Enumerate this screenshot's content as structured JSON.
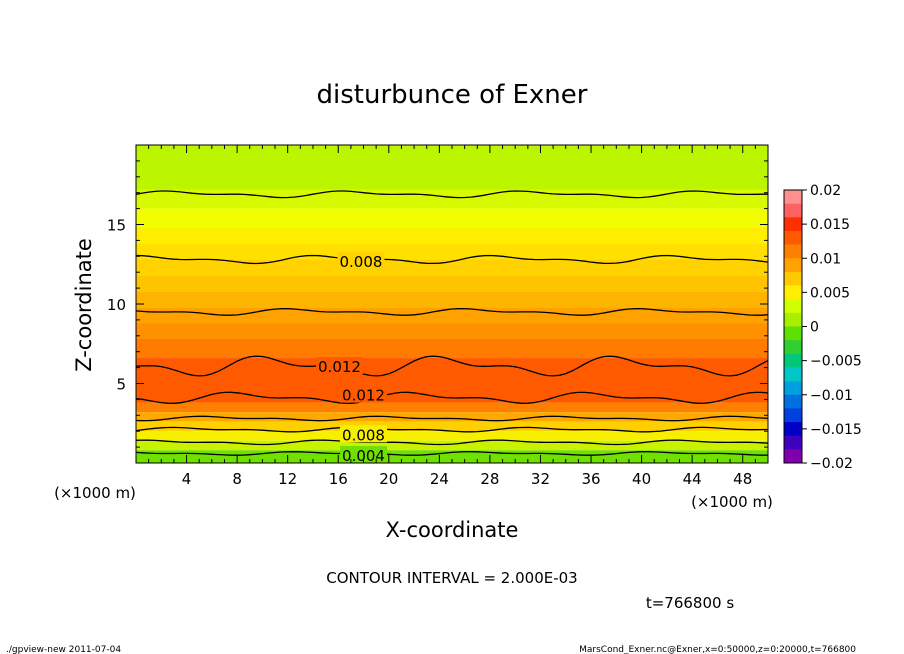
{
  "chart_data": {
    "type": "contour",
    "title": "disturbunce of Exner",
    "xlabel": "X-coordinate",
    "ylabel": "Z-coordinate",
    "x_unit": "(×1000 m)",
    "y_unit": "(×1000 m)",
    "xlim": [
      0,
      50
    ],
    "ylim": [
      0,
      20
    ],
    "x_ticks": [
      4,
      8,
      12,
      16,
      20,
      24,
      28,
      32,
      36,
      40,
      44,
      48
    ],
    "y_ticks": [
      5,
      10,
      15
    ],
    "colorbar": {
      "range": [
        -0.02,
        0.02
      ],
      "tick_labels": [
        "0.02",
        "0.015",
        "0.01",
        "0.005",
        "0",
        "−0.005",
        "−0.01",
        "−0.015",
        "−0.02"
      ],
      "colors": [
        "#ff9090",
        "#ff6060",
        "#ff3000",
        "#ff5a00",
        "#ff8000",
        "#ffa200",
        "#ffc800",
        "#ffee00",
        "#d0ff00",
        "#a8f000",
        "#60e000",
        "#30d030",
        "#00c878",
        "#00c8c8",
        "#00a0e0",
        "#0070e0",
        "#0040e0",
        "#0000c8",
        "#4000c0",
        "#8000b0"
      ]
    },
    "contour_labels": [
      {
        "text": "0.008",
        "x": 17.8,
        "z": 12.7
      },
      {
        "text": "0.012",
        "x": 16.1,
        "z": 6.1
      },
      {
        "text": "0.012",
        "x": 18.0,
        "z": 4.3
      },
      {
        "text": "0.008",
        "x": 18.0,
        "z": 1.8
      },
      {
        "text": "0.004",
        "x": 18.0,
        "z": 0.5
      }
    ],
    "contour_interval_text": "CONTOUR INTERVAL = 2.000E-03",
    "time_text": "t=766800 s",
    "footer_left": "./gpview-new   2011-07-04",
    "footer_right": "MarsCond_Exner.nc@Exner,x=0:50000,z=0:20000,t=766800",
    "field_bands": [
      {
        "z": [
          17.2,
          20.0
        ],
        "color": "#bcf500"
      },
      {
        "z": [
          16.0,
          17.2
        ],
        "color": "#d8fa00"
      },
      {
        "z": [
          14.8,
          16.0
        ],
        "color": "#f2fd00"
      },
      {
        "z": [
          13.8,
          14.8
        ],
        "color": "#ffee00"
      },
      {
        "z": [
          12.8,
          13.8
        ],
        "color": "#ffe000"
      },
      {
        "z": [
          11.8,
          12.8
        ],
        "color": "#ffd200"
      },
      {
        "z": [
          10.8,
          11.8
        ],
        "color": "#ffc400"
      },
      {
        "z": [
          9.8,
          10.8
        ],
        "color": "#ffb400"
      },
      {
        "z": [
          8.8,
          9.8
        ],
        "color": "#ffa200"
      },
      {
        "z": [
          7.8,
          8.8
        ],
        "color": "#ff9000"
      },
      {
        "z": [
          6.6,
          7.8
        ],
        "color": "#ff7c00"
      },
      {
        "z": [
          3.8,
          6.6
        ],
        "color": "#ff5a00"
      },
      {
        "z": [
          3.2,
          3.8
        ],
        "color": "#ff8000"
      },
      {
        "z": [
          2.6,
          3.2
        ],
        "color": "#ffa800"
      },
      {
        "z": [
          2.0,
          2.6
        ],
        "color": "#ffd000"
      },
      {
        "z": [
          1.4,
          2.0
        ],
        "color": "#f6f000"
      },
      {
        "z": [
          0.8,
          1.4
        ],
        "color": "#c8f200"
      },
      {
        "z": [
          0.0,
          0.8
        ],
        "color": "#70e000"
      }
    ],
    "contour_lines": [
      {
        "z": 16.9,
        "amp": 0.15
      },
      {
        "z": 12.8,
        "amp": 0.18
      },
      {
        "z": 9.5,
        "amp": 0.15
      },
      {
        "z": 6.1,
        "amp": 0.45
      },
      {
        "z": 4.1,
        "amp": 0.25
      },
      {
        "z": 2.8,
        "amp": 0.1
      },
      {
        "z": 2.1,
        "amp": 0.1
      },
      {
        "z": 1.3,
        "amp": 0.1
      },
      {
        "z": 0.6,
        "amp": 0.08
      }
    ]
  }
}
